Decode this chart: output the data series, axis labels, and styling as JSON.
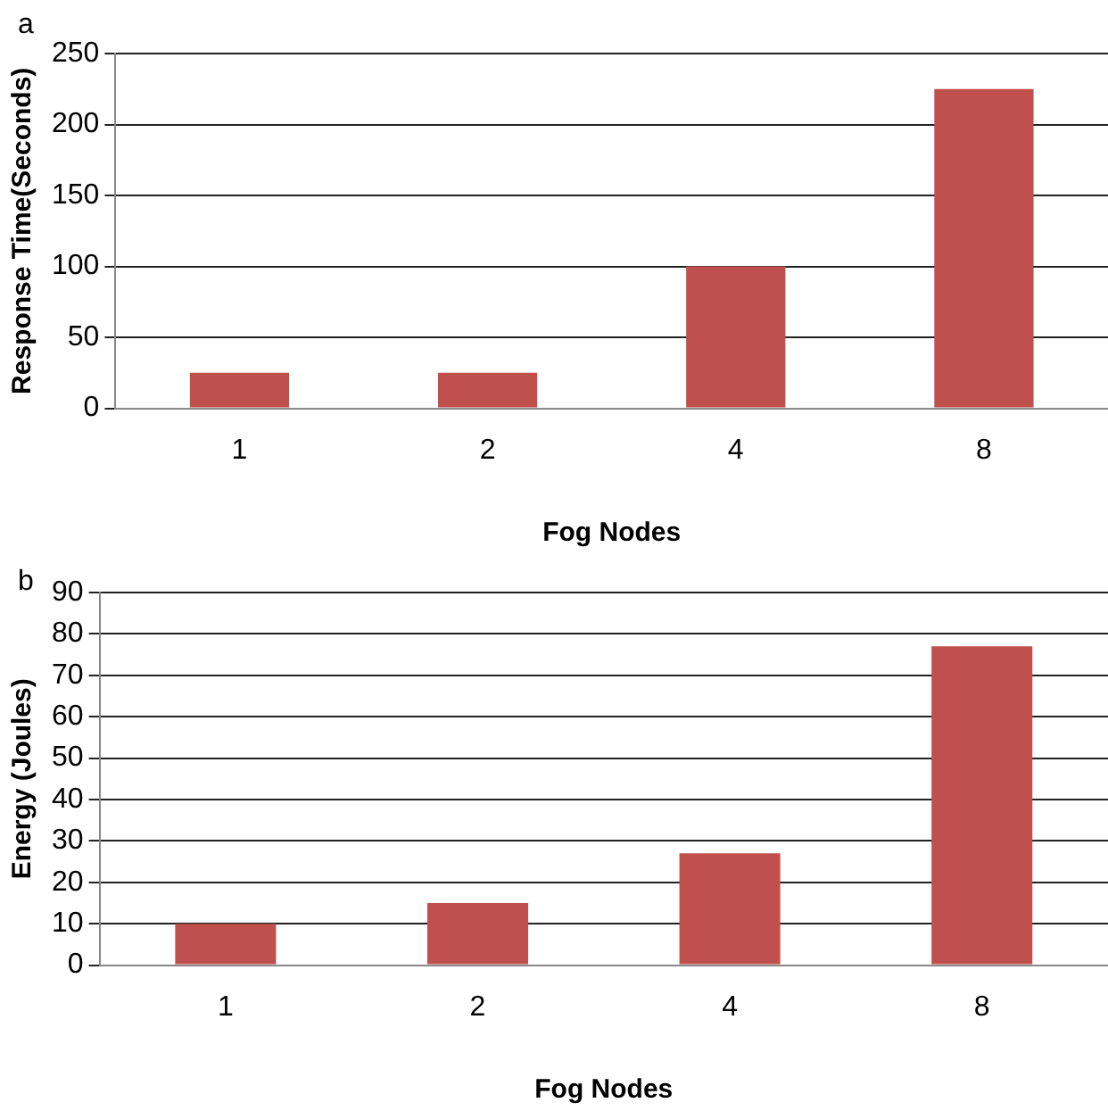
{
  "chart_data": [
    {
      "type": "bar",
      "annotations": [
        "a"
      ],
      "xlabel": "Fog Nodes",
      "ylabel": "Response Time(Seconds)",
      "categories": [
        "1",
        "2",
        "4",
        "8"
      ],
      "values": [
        25,
        25,
        100,
        225
      ],
      "color": "#c0504d",
      "ylim": [
        0,
        250
      ],
      "yticks": [
        0,
        50,
        100,
        150,
        200,
        250
      ],
      "grid": "y",
      "legend": false
    },
    {
      "type": "bar",
      "annotations": [
        "b"
      ],
      "xlabel": "Fog Nodes",
      "ylabel": "Energy (Joules)",
      "categories": [
        "1",
        "2",
        "4",
        "8"
      ],
      "values": [
        10,
        15,
        27,
        77
      ],
      "color": "#c0504d",
      "ylim": [
        0,
        90
      ],
      "yticks": [
        0,
        10,
        20,
        30,
        40,
        50,
        60,
        70,
        80,
        90
      ],
      "grid": "y",
      "legend": false
    }
  ]
}
